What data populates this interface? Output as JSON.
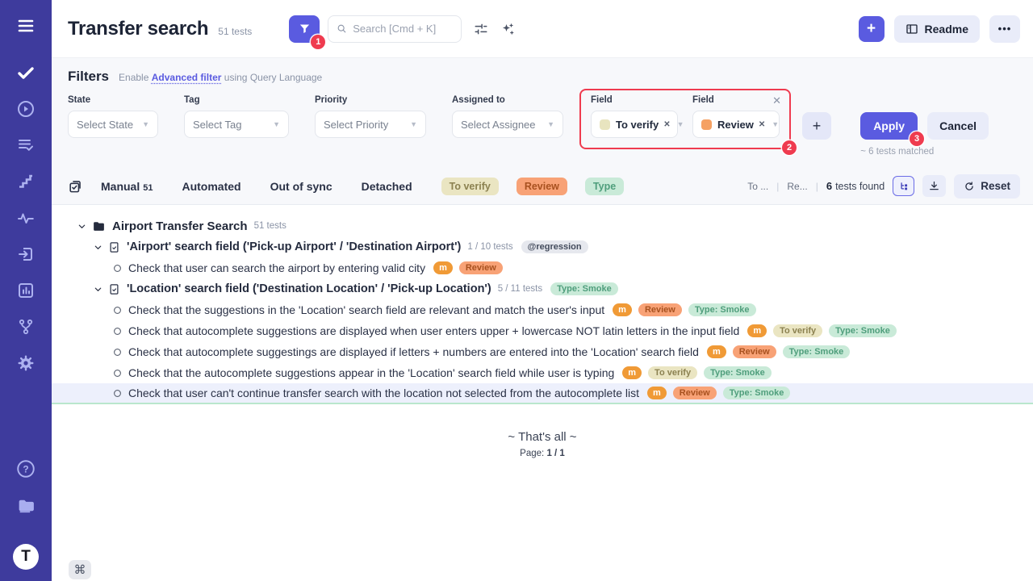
{
  "colors": {
    "accent": "#5a5be0",
    "sidebar": "#3e3b9d",
    "annotation_red": "#ef3b4f",
    "highlight_row": "#edf0fc",
    "highlight_underline": "#b9e7cd"
  },
  "sidebar": {
    "logo_label": "T"
  },
  "header": {
    "title": "Transfer search",
    "tests_count": "51 tests",
    "search_placeholder": "Search [Cmd + K]",
    "add_label": "+",
    "readme_label": "Readme",
    "more_glyph": "•••"
  },
  "filters": {
    "title": "Filters",
    "enable_prefix": "Enable",
    "advanced_link": "Advanced filter",
    "enable_suffix": "using Query Language",
    "groups": [
      {
        "label": "State",
        "placeholder": "Select State"
      },
      {
        "label": "Tag",
        "placeholder": "Select Tag"
      },
      {
        "label": "Priority",
        "placeholder": "Select Priority"
      },
      {
        "label": "Assigned to",
        "placeholder": "Select Assignee"
      }
    ],
    "field_filters": [
      {
        "label": "Field",
        "value": "To verify",
        "chip_color": "#e8e4bf"
      },
      {
        "label": "Field",
        "value": "Review",
        "chip_color": "#f5a163"
      }
    ],
    "add_field_label": "+",
    "apply_label": "Apply",
    "cancel_label": "Cancel",
    "matched_text": "~ 6 tests matched",
    "annotations": {
      "filter_step": "1",
      "fields_step": "2",
      "apply_step": "3"
    }
  },
  "toolbar": {
    "tabs": [
      {
        "label": "Manual",
        "count": "51"
      },
      {
        "label": "Automated",
        "count": ""
      },
      {
        "label": "Out of sync",
        "count": ""
      },
      {
        "label": "Detached",
        "count": ""
      }
    ],
    "pills": [
      "to_verify",
      "review",
      "type"
    ],
    "right": {
      "col1": "To ...",
      "col2": "Re...",
      "count": "6",
      "count_label": "tests found",
      "reset_label": "Reset"
    }
  },
  "badge_defs": {
    "m": {
      "label": "m",
      "bg": "#f09a36",
      "color": "#ffffff"
    },
    "to_verify": {
      "label": "To verify",
      "bg": "#eae5c2",
      "color": "#8b8150"
    },
    "review": {
      "label": "Review",
      "bg": "#f8a276",
      "color": "#a8511f"
    },
    "type": {
      "label": "Type",
      "bg": "#c9ead8",
      "color": "#4f9e7c"
    },
    "type_smoke": {
      "label": "Type: Smoke",
      "bg": "#c9ead8",
      "color": "#4f9e7c"
    },
    "regression": {
      "label": "@regression",
      "bg": "#e6e8ee",
      "color": "#434b5c"
    }
  },
  "tree": {
    "rows": [
      {
        "type": "folder",
        "level": 0,
        "title": "Airport Transfer Search",
        "meta": "51 tests",
        "badges": []
      },
      {
        "type": "suite",
        "level": 1,
        "title": "'Airport' search field ('Pick-up Airport' / 'Destination Airport')",
        "meta": "1 / 10 tests",
        "badges": [
          "regression"
        ]
      },
      {
        "type": "test",
        "level": 2,
        "title": "Check that user can search the airport by entering valid city",
        "badges": [
          "m",
          "review"
        ]
      },
      {
        "type": "suite",
        "level": 1,
        "title": "'Location' search field ('Destination Location' / 'Pick-up Location')",
        "meta": "5 / 11 tests",
        "badges": [
          "type_smoke"
        ]
      },
      {
        "type": "test",
        "level": 2,
        "title": "Check that the suggestions in the 'Location' search field are relevant and match the user's input",
        "badges": [
          "m",
          "review",
          "type_smoke"
        ]
      },
      {
        "type": "test",
        "level": 2,
        "title": "Check that autocomplete suggestions are displayed when user enters upper + lowercase NOT latin letters in the input field",
        "badges": [
          "m",
          "to_verify",
          "type_smoke"
        ]
      },
      {
        "type": "test",
        "level": 2,
        "title": "Check that autocomplete suggestings are displayed if letters + numbers are entered into the 'Location' search field",
        "badges": [
          "m",
          "review",
          "type_smoke"
        ]
      },
      {
        "type": "test",
        "level": 2,
        "title": "Check that the autocomplete suggestions appear in the 'Location' search field while user is typing",
        "badges": [
          "m",
          "to_verify",
          "type_smoke"
        ]
      },
      {
        "type": "test",
        "level": 2,
        "title": "Check that user can't continue transfer search with the location not selected from the autocomplete list",
        "badges": [
          "m",
          "review",
          "type_smoke"
        ],
        "highlighted": true
      }
    ]
  },
  "footer": {
    "end_text": "~ That's all ~",
    "page_label": "Page:",
    "page_value": "1 / 1",
    "cmd_glyph": "⌘"
  }
}
